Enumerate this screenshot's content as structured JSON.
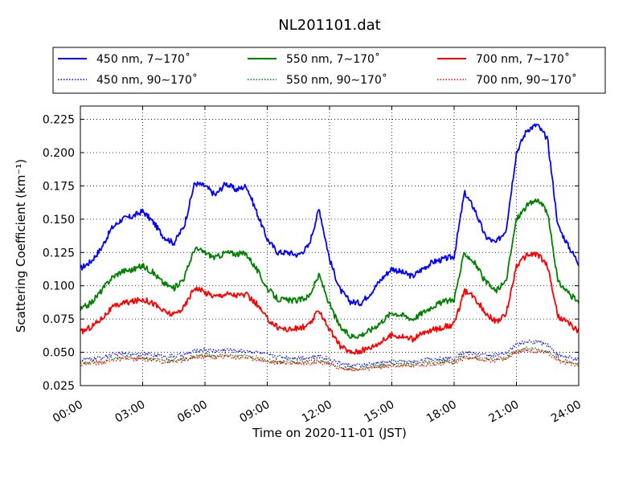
{
  "chart_data": {
    "type": "line",
    "title": "NL201101.dat",
    "xlabel": "Time on 2020-11-01 (JST)",
    "ylabel": "Scattering Coefficient (km⁻¹)",
    "x_unit": "hours",
    "xlim": [
      0,
      24
    ],
    "ylim": [
      0.025,
      0.235
    ],
    "x_ticks": [
      0,
      3,
      6,
      9,
      12,
      15,
      18,
      21,
      24
    ],
    "x_tick_labels": [
      "00:00",
      "03:00",
      "06:00",
      "09:00",
      "12:00",
      "15:00",
      "18:00",
      "21:00",
      "24:00"
    ],
    "y_ticks": [
      0.025,
      0.05,
      0.075,
      0.1,
      0.125,
      0.15,
      0.175,
      0.2,
      0.225
    ],
    "y_tick_labels": [
      "0.025",
      "0.050",
      "0.075",
      "0.100",
      "0.125",
      "0.150",
      "0.175",
      "0.200",
      "0.225"
    ],
    "grid": true,
    "legend_position": "top",
    "x": [
      0,
      0.5,
      1,
      1.5,
      2,
      2.5,
      3,
      3.5,
      4,
      4.5,
      5,
      5.5,
      6,
      6.5,
      7,
      7.5,
      8,
      8.5,
      9,
      9.5,
      10,
      10.5,
      11,
      11.5,
      12,
      12.5,
      13,
      13.5,
      14,
      14.5,
      15,
      15.5,
      16,
      16.5,
      17,
      17.5,
      18,
      18.5,
      19,
      19.5,
      20,
      20.5,
      21,
      21.5,
      22,
      22.5,
      23,
      23.5,
      24
    ],
    "series": [
      {
        "name": "450 nm, 7∼170˚",
        "color": "#0000ff",
        "style": "solid",
        "values": [
          0.113,
          0.118,
          0.128,
          0.143,
          0.15,
          0.152,
          0.156,
          0.148,
          0.137,
          0.132,
          0.145,
          0.177,
          0.175,
          0.168,
          0.177,
          0.172,
          0.175,
          0.155,
          0.135,
          0.125,
          0.125,
          0.123,
          0.13,
          0.158,
          0.12,
          0.097,
          0.088,
          0.087,
          0.095,
          0.105,
          0.113,
          0.11,
          0.107,
          0.113,
          0.118,
          0.12,
          0.122,
          0.17,
          0.157,
          0.137,
          0.132,
          0.142,
          0.2,
          0.217,
          0.221,
          0.21,
          0.145,
          0.13,
          0.117
        ]
      },
      {
        "name": "450 nm, 90∼170˚",
        "color": "#0000ff",
        "style": "dotted",
        "values": [
          0.044,
          0.045,
          0.046,
          0.048,
          0.049,
          0.049,
          0.049,
          0.048,
          0.047,
          0.047,
          0.048,
          0.051,
          0.052,
          0.051,
          0.052,
          0.051,
          0.051,
          0.05,
          0.048,
          0.047,
          0.046,
          0.046,
          0.046,
          0.047,
          0.045,
          0.042,
          0.04,
          0.04,
          0.041,
          0.042,
          0.043,
          0.043,
          0.043,
          0.044,
          0.045,
          0.045,
          0.046,
          0.05,
          0.049,
          0.048,
          0.048,
          0.049,
          0.056,
          0.058,
          0.058,
          0.056,
          0.048,
          0.046,
          0.044
        ]
      },
      {
        "name": "550 nm, 7∼170˚",
        "color": "#008000",
        "style": "solid",
        "values": [
          0.082,
          0.087,
          0.096,
          0.106,
          0.111,
          0.112,
          0.115,
          0.11,
          0.102,
          0.098,
          0.106,
          0.128,
          0.125,
          0.121,
          0.125,
          0.124,
          0.124,
          0.112,
          0.098,
          0.09,
          0.089,
          0.089,
          0.092,
          0.108,
          0.086,
          0.069,
          0.062,
          0.063,
          0.067,
          0.073,
          0.08,
          0.078,
          0.075,
          0.08,
          0.085,
          0.088,
          0.09,
          0.125,
          0.117,
          0.103,
          0.096,
          0.103,
          0.15,
          0.16,
          0.165,
          0.155,
          0.103,
          0.095,
          0.087
        ]
      },
      {
        "name": "550 nm, 90∼170˚",
        "color": "#008000",
        "style": "dotted",
        "values": [
          0.042,
          0.043,
          0.043,
          0.045,
          0.046,
          0.046,
          0.046,
          0.045,
          0.044,
          0.044,
          0.045,
          0.047,
          0.048,
          0.047,
          0.048,
          0.047,
          0.047,
          0.046,
          0.044,
          0.043,
          0.043,
          0.043,
          0.043,
          0.044,
          0.042,
          0.039,
          0.038,
          0.038,
          0.039,
          0.04,
          0.041,
          0.041,
          0.041,
          0.042,
          0.042,
          0.043,
          0.043,
          0.047,
          0.046,
          0.045,
          0.045,
          0.046,
          0.051,
          0.053,
          0.052,
          0.051,
          0.045,
          0.043,
          0.041
        ]
      },
      {
        "name": "700 nm, 7∼170˚",
        "color": "#ff0000",
        "style": "solid",
        "values": [
          0.065,
          0.069,
          0.075,
          0.083,
          0.087,
          0.088,
          0.09,
          0.087,
          0.081,
          0.078,
          0.084,
          0.099,
          0.095,
          0.092,
          0.094,
          0.093,
          0.093,
          0.086,
          0.075,
          0.069,
          0.067,
          0.068,
          0.07,
          0.082,
          0.067,
          0.055,
          0.05,
          0.051,
          0.054,
          0.058,
          0.063,
          0.062,
          0.06,
          0.064,
          0.067,
          0.069,
          0.071,
          0.096,
          0.091,
          0.08,
          0.073,
          0.078,
          0.115,
          0.123,
          0.124,
          0.115,
          0.077,
          0.072,
          0.066
        ]
      },
      {
        "name": "700 nm, 90∼170˚",
        "color": "#ff0000",
        "style": "dotted",
        "values": [
          0.041,
          0.042,
          0.042,
          0.044,
          0.045,
          0.045,
          0.045,
          0.044,
          0.043,
          0.043,
          0.044,
          0.046,
          0.047,
          0.046,
          0.047,
          0.046,
          0.046,
          0.045,
          0.043,
          0.042,
          0.042,
          0.042,
          0.042,
          0.043,
          0.041,
          0.038,
          0.037,
          0.037,
          0.038,
          0.039,
          0.04,
          0.04,
          0.04,
          0.041,
          0.041,
          0.042,
          0.042,
          0.046,
          0.045,
          0.044,
          0.044,
          0.045,
          0.05,
          0.052,
          0.051,
          0.05,
          0.044,
          0.042,
          0.04
        ]
      }
    ]
  }
}
